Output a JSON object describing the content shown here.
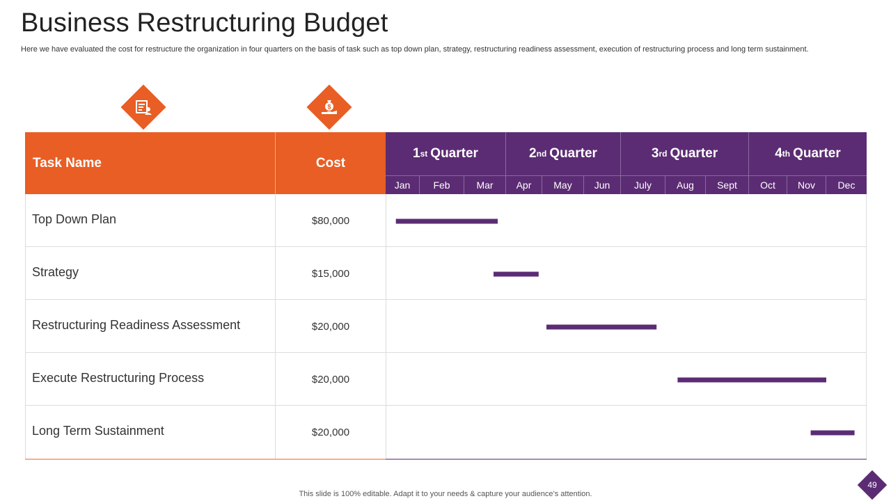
{
  "title": "Business Restructuring Budget",
  "subtitle": "Here we have evaluated the cost for restructure the organization in four quarters on the basis of task such as top down plan, strategy, restructuring readiness assessment, execution of restructuring process and long term sustainment.",
  "headers": {
    "task": "Task Name",
    "cost": "Cost"
  },
  "quarters": [
    {
      "ord": "1",
      "sup": "st",
      "label": "Quarter"
    },
    {
      "ord": "2",
      "sup": "nd",
      "label": "Quarter"
    },
    {
      "ord": "3",
      "sup": "rd",
      "label": "Quarter"
    },
    {
      "ord": "4",
      "sup": "th",
      "label": "Quarter"
    }
  ],
  "months": [
    "Jan",
    "Feb",
    "Mar",
    "Apr",
    "May",
    "Jun",
    "July",
    "Aug",
    "Sept",
    "Oct",
    "Nov",
    "Dec"
  ],
  "icons": [
    "budget-list-icon",
    "money-bag-hand-icon"
  ],
  "colors": {
    "orange": "#e85e24",
    "purple": "#5b2c73"
  },
  "chart_data": {
    "type": "gantt",
    "title": "Business Restructuring Budget",
    "x_unit": "month (0 = start of Jan, 12 = end of Dec)",
    "tasks": [
      {
        "name": "Top Down Plan",
        "cost": "$80,000",
        "start": 0.3,
        "end": 2.8
      },
      {
        "name": "Strategy",
        "cost": "$15,000",
        "start": 2.7,
        "end": 3.9
      },
      {
        "name": "Restructuring Readiness Assessment",
        "cost": "$20,000",
        "start": 4.1,
        "end": 6.8
      },
      {
        "name": "Execute Restructuring Process",
        "cost": "$20,000",
        "start": 7.3,
        "end": 11.0
      },
      {
        "name": "Long Term Sustainment",
        "cost": "$20,000",
        "start": 10.6,
        "end": 11.7
      }
    ]
  },
  "footer": "This slide is 100% editable. Adapt it to your needs & capture your audience’s attention.",
  "page_number": "49"
}
